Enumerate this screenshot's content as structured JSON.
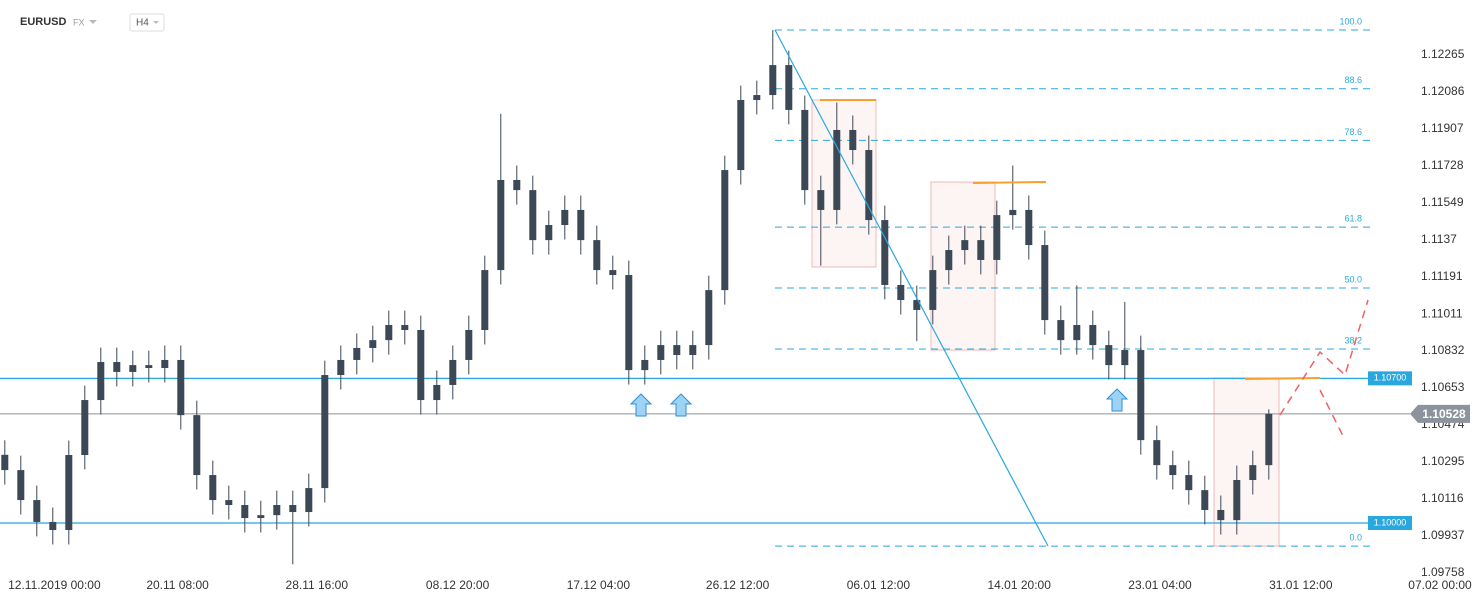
{
  "chart_data": {
    "type": "candlestick",
    "symbol": "EURUSD",
    "market": "FX",
    "timeframe": "H4",
    "ylim": [
      1.09758,
      1.12531
    ],
    "yticks": [
      1.12265,
      1.12086,
      1.11907,
      1.11728,
      1.11549,
      1.1137,
      1.11191,
      1.11011,
      1.10832,
      1.10653,
      1.10474,
      1.10295,
      1.10116,
      1.09937,
      1.09758
    ],
    "xlim": [
      -0.3,
      89.7
    ],
    "xticks": [
      {
        "value": 3.1,
        "label": "12.11.2019  00:00"
      },
      {
        "value": 10.8,
        "label": "20.11  08:00"
      },
      {
        "value": 19.5,
        "label": "28.11  16:00"
      },
      {
        "value": 28.3,
        "label": "08.12  20:00"
      },
      {
        "value": 37.1,
        "label": "17.12  04:00"
      },
      {
        "value": 45.8,
        "label": "26.12  12:00"
      },
      {
        "value": 54.6,
        "label": "06.01  12:00"
      },
      {
        "value": 63.4,
        "label": "14.01  20:00"
      },
      {
        "value": 72.2,
        "label": "23.01  04:00"
      },
      {
        "value": 81,
        "label": "31.01  12:00"
      },
      {
        "value": 89.7,
        "label": "07.02  00:00"
      }
    ],
    "up_color": "#3d4856",
    "down_color": "#3d4856",
    "open": [
      1.1033,
      1.10256,
      1.10111,
      1.10005,
      1.09966,
      1.10329,
      1.10595,
      1.10779,
      1.10731,
      1.10764,
      1.1075,
      1.10789,
      1.10522,
      1.10232,
      1.10111,
      1.10087,
      1.10024,
      1.10038,
      1.10087,
      1.10053,
      1.10169,
      1.10716,
      1.10789,
      1.10847,
      1.10885,
      1.10958,
      1.10934,
      1.10595,
      1.10668,
      1.10789,
      1.10934,
      1.11224,
      1.1166,
      1.11611,
      1.11369,
      1.11442,
      1.11515,
      1.11369,
      1.11224,
      1.112,
      1.1074,
      1.10789,
      1.10861,
      1.10813,
      1.10861,
      1.11127,
      1.11708,
      1.12047,
      1.12071,
      1.12216,
      1.11999,
      1.11611,
      1.11515,
      1.11902,
      1.11805,
      1.11466,
      1.11152,
      1.11079,
      1.11031,
      1.11224,
      1.11321,
      1.11369,
      1.11273,
      1.1149,
      1.11515,
      1.11345,
      1.10982,
      1.10885,
      1.10958,
      1.10861,
      1.10764,
      1.10837,
      1.10401,
      1.1028,
      1.10232,
      1.10159,
      1.10063,
      1.10014,
      1.10208,
      1.1028
    ],
    "high": [
      1.104,
      1.10326,
      1.10181,
      1.10075,
      1.10399,
      1.10665,
      1.10849,
      1.10849,
      1.10834,
      1.10834,
      1.10859,
      1.10859,
      1.10592,
      1.10302,
      1.10181,
      1.10157,
      1.10108,
      1.10157,
      1.10157,
      1.10239,
      1.10786,
      1.10859,
      1.10917,
      1.10955,
      1.11028,
      1.11028,
      1.11004,
      1.10738,
      1.10859,
      1.11004,
      1.11294,
      1.1198,
      1.1173,
      1.11681,
      1.11512,
      1.11585,
      1.11585,
      1.11439,
      1.11294,
      1.1127,
      1.10859,
      1.10931,
      1.10931,
      1.10931,
      1.11197,
      1.11778,
      1.12117,
      1.12141,
      1.12386,
      1.12286,
      1.12069,
      1.11681,
      1.12035,
      1.11972,
      1.11875,
      1.11536,
      1.11222,
      1.11149,
      1.11294,
      1.11391,
      1.11439,
      1.11439,
      1.1156,
      1.1173,
      1.11585,
      1.11415,
      1.11052,
      1.1115,
      1.11028,
      1.10931,
      1.1107,
      1.10907,
      1.10471,
      1.1035,
      1.10302,
      1.10229,
      1.10133,
      1.10278,
      1.1035,
      1.1055
    ],
    "low": [
      1.10186,
      1.10041,
      1.09935,
      1.09896,
      1.09896,
      1.10259,
      1.10525,
      1.10661,
      1.10661,
      1.1068,
      1.1068,
      1.10452,
      1.10162,
      1.10041,
      1.10017,
      1.09954,
      1.09954,
      1.09968,
      1.098,
      1.09983,
      1.10099,
      1.10646,
      1.10719,
      1.10777,
      1.10815,
      1.10864,
      1.10525,
      1.10525,
      1.10598,
      1.10719,
      1.10864,
      1.11154,
      1.11541,
      1.11299,
      1.11299,
      1.11372,
      1.11299,
      1.11154,
      1.1113,
      1.1067,
      1.1067,
      1.10719,
      1.10743,
      1.10743,
      1.10791,
      1.11057,
      1.11638,
      1.11977,
      1.12001,
      1.11929,
      1.11541,
      1.11245,
      1.11445,
      1.11735,
      1.11396,
      1.11082,
      1.11009,
      1.1088,
      1.10961,
      1.11154,
      1.11251,
      1.11203,
      1.11203,
      1.1142,
      1.11275,
      1.10912,
      1.10815,
      1.10815,
      1.10791,
      1.10694,
      1.10694,
      1.10331,
      1.1021,
      1.10162,
      1.10089,
      1.09993,
      1.09944,
      1.09944,
      1.10138,
      1.1021
    ],
    "close": [
      1.10256,
      1.10111,
      1.10005,
      1.09966,
      1.10329,
      1.10595,
      1.10779,
      1.10731,
      1.10764,
      1.1075,
      1.10789,
      1.10522,
      1.10232,
      1.10111,
      1.10087,
      1.10024,
      1.10038,
      1.10087,
      1.10053,
      1.10169,
      1.10716,
      1.10789,
      1.10847,
      1.10885,
      1.10958,
      1.10934,
      1.10595,
      1.10668,
      1.10789,
      1.10934,
      1.11224,
      1.1166,
      1.11611,
      1.11369,
      1.11442,
      1.11515,
      1.11369,
      1.11224,
      1.112,
      1.1074,
      1.10789,
      1.10861,
      1.10813,
      1.10861,
      1.11127,
      1.11708,
      1.12047,
      1.12071,
      1.12216,
      1.11999,
      1.11611,
      1.11515,
      1.11902,
      1.11805,
      1.11466,
      1.11152,
      1.11079,
      1.11031,
      1.11224,
      1.11321,
      1.11369,
      1.11273,
      1.1149,
      1.11515,
      1.11345,
      1.10982,
      1.10885,
      1.10958,
      1.10861,
      1.10764,
      1.10837,
      1.10401,
      1.1028,
      1.10232,
      1.10159,
      1.10063,
      1.10014,
      1.10208,
      1.1028,
      1.10528
    ],
    "levels": [
      {
        "value": 1.107,
        "label": "1.10700",
        "color": "#29a8e0"
      },
      {
        "value": 1.1,
        "label": "1.10000",
        "color": "#29a8e0"
      }
    ],
    "last_price": 1.10528,
    "last_price_color": "#8c939c",
    "fibonacci": {
      "high": 1.12386,
      "low": 1.09888,
      "color": "#29a8e0",
      "levels": [
        {
          "value": 100,
          "label": "100.0"
        },
        {
          "value": 88.6,
          "label": "88.6"
        },
        {
          "value": 78.6,
          "label": "78.6"
        },
        {
          "value": 61.8,
          "label": "61.8"
        },
        {
          "value": 50,
          "label": "50.0"
        },
        {
          "value": 38.2,
          "label": "38.2"
        },
        {
          "value": 0,
          "label": "0.0"
        }
      ]
    }
  }
}
